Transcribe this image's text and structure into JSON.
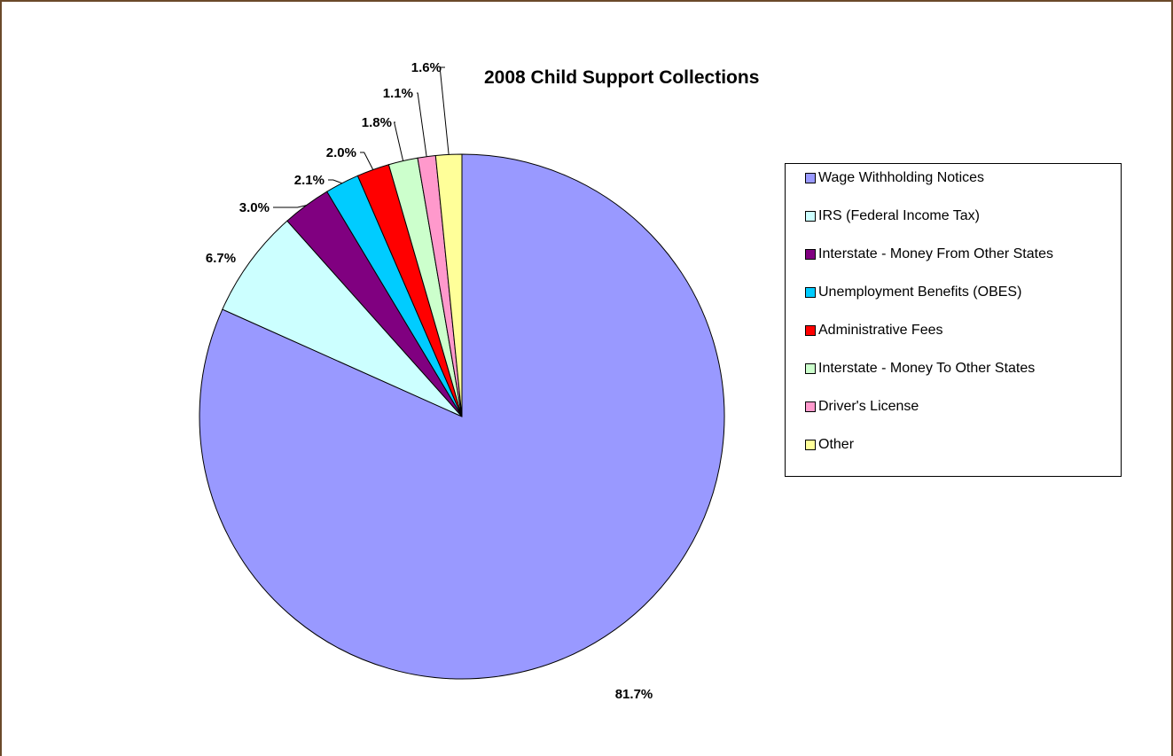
{
  "chart_data": {
    "type": "pie",
    "title": "2008 Child Support Collections",
    "categories": [
      "Wage Withholding Notices",
      "IRS (Federal Income Tax)",
      "Interstate - Money From Other States",
      "Unemployment Benefits (OBES)",
      "Administrative Fees",
      "Interstate - Money To Other States",
      "Driver's License",
      "Other"
    ],
    "values": [
      81.7,
      6.7,
      3.0,
      2.1,
      2.0,
      1.8,
      1.1,
      1.6
    ],
    "labels": [
      "81.7%",
      "6.7%",
      "3.0%",
      "2.1%",
      "2.0%",
      "1.8%",
      "1.1%",
      "1.6%"
    ],
    "colors": [
      "#9999ff",
      "#ccffff",
      "#800080",
      "#00ccff",
      "#ff0000",
      "#ccffcc",
      "#ff99cc",
      "#ffff99"
    ],
    "legend_position": "right",
    "start_angle": "12 o'clock",
    "direction": "clockwise"
  }
}
